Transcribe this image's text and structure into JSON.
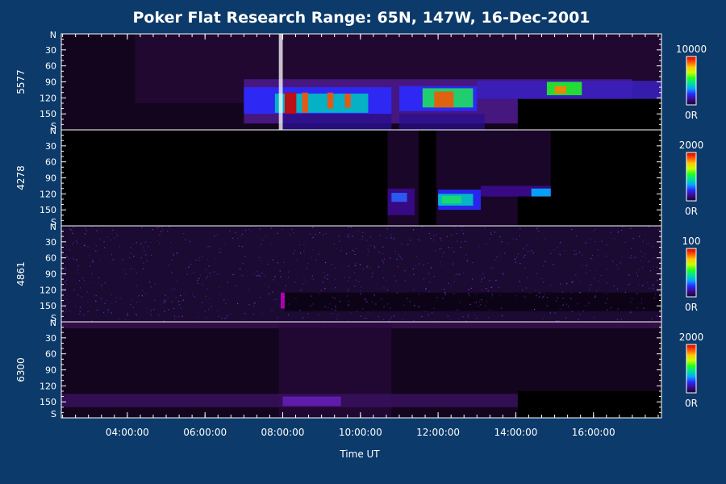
{
  "chart_data": {
    "type": "heatmap",
    "title": "Poker Flat Research Range: 65N, 147W, 16-Dec-2001",
    "xlabel": "Time UT",
    "x_range_hours": [
      2.3,
      17.75
    ],
    "x_ticks": [
      {
        "value": 4,
        "label": "04:00:00"
      },
      {
        "value": 6,
        "label": "06:00:00"
      },
      {
        "value": 8,
        "label": "08:00:00"
      },
      {
        "value": 10,
        "label": "10:00:00"
      },
      {
        "value": 12,
        "label": "12:00:00"
      },
      {
        "value": 14,
        "label": "14:00:00"
      },
      {
        "value": 16,
        "label": "16:00:00"
      }
    ],
    "y_range_deg": [
      0,
      180
    ],
    "y_ticks": [
      {
        "value": 0,
        "label": "N"
      },
      {
        "value": 30,
        "label": "30"
      },
      {
        "value": 60,
        "label": "60"
      },
      {
        "value": 90,
        "label": "90"
      },
      {
        "value": 120,
        "label": "120"
      },
      {
        "value": 150,
        "label": "150"
      },
      {
        "value": 180,
        "label": "S"
      }
    ],
    "colorbar_colors": [
      "#1a0030",
      "#3b0a8c",
      "#2a2aff",
      "#00a8ff",
      "#00e0a0",
      "#20ff20",
      "#c8ff00",
      "#ffc800",
      "#ff5000",
      "#c80000"
    ],
    "panels": [
      {
        "name": "5577",
        "cbar_max": "10000",
        "cbar_min": "0R",
        "features": [
          {
            "kind": "rect",
            "x0": 2.3,
            "x1": 17.75,
            "y0": 0,
            "y1": 180,
            "color": "#14051e",
            "opacity": 1
          },
          {
            "kind": "rect",
            "x0": 4.2,
            "x1": 17.75,
            "y0": 0,
            "y1": 130,
            "color": "#2a0a3e",
            "opacity": 0.6
          },
          {
            "kind": "rect",
            "x0": 7.0,
            "x1": 17.0,
            "y0": 85,
            "y1": 168,
            "color": "#4a1a8a",
            "opacity": 0.9
          },
          {
            "kind": "rect",
            "x0": 7.0,
            "x1": 10.8,
            "y0": 100,
            "y1": 150,
            "color": "#2a2aff",
            "opacity": 0.9
          },
          {
            "kind": "rect",
            "x0": 7.8,
            "x1": 10.2,
            "y0": 112,
            "y1": 148,
            "color": "#00c0c0",
            "opacity": 0.9
          },
          {
            "kind": "rect",
            "x0": 11.0,
            "x1": 13.0,
            "y0": 98,
            "y1": 145,
            "color": "#2a2aff",
            "opacity": 0.9
          },
          {
            "kind": "rect",
            "x0": 11.6,
            "x1": 12.9,
            "y0": 102,
            "y1": 138,
            "color": "#20e060",
            "opacity": 0.9
          },
          {
            "kind": "rect",
            "x0": 13.0,
            "x1": 17.75,
            "y0": 88,
            "y1": 122,
            "color": "#3a20c0",
            "opacity": 0.85
          },
          {
            "kind": "rect",
            "x0": 14.8,
            "x1": 15.7,
            "y0": 90,
            "y1": 115,
            "color": "#20ff20",
            "opacity": 0.85
          },
          {
            "kind": "rect",
            "x0": 8.05,
            "x1": 8.35,
            "y0": 110,
            "y1": 150,
            "color": "#d00000",
            "opacity": 0.9
          },
          {
            "kind": "rect",
            "x0": 8.5,
            "x1": 8.65,
            "y0": 110,
            "y1": 148,
            "color": "#ff5000",
            "opacity": 0.9
          },
          {
            "kind": "rect",
            "x0": 9.15,
            "x1": 9.3,
            "y0": 110,
            "y1": 140,
            "color": "#ff5000",
            "opacity": 0.9
          },
          {
            "kind": "rect",
            "x0": 9.6,
            "x1": 9.75,
            "y0": 112,
            "y1": 138,
            "color": "#ff5000",
            "opacity": 0.9
          },
          {
            "kind": "rect",
            "x0": 11.9,
            "x1": 12.4,
            "y0": 108,
            "y1": 138,
            "color": "#ff5000",
            "opacity": 0.85
          },
          {
            "kind": "rect",
            "x0": 15.0,
            "x1": 15.3,
            "y0": 98,
            "y1": 112,
            "color": "#ff8000",
            "opacity": 0.9
          },
          {
            "kind": "rect",
            "x0": 7.9,
            "x1": 8.0,
            "y0": 0,
            "y1": 180,
            "color": "#ffffff",
            "opacity": 0.75
          },
          {
            "kind": "rect",
            "x0": 8.0,
            "x1": 10.8,
            "y0": 150,
            "y1": 180,
            "color": "#2a1090",
            "opacity": 0.8
          },
          {
            "kind": "rect",
            "x0": 11.0,
            "x1": 13.2,
            "y0": 150,
            "y1": 180,
            "color": "#2a1090",
            "opacity": 0.7
          },
          {
            "kind": "rect",
            "x0": 14.05,
            "x1": 17.75,
            "y0": 122,
            "y1": 180,
            "color": "#000000",
            "opacity": 1
          }
        ]
      },
      {
        "name": "4278",
        "cbar_max": "2000",
        "cbar_min": "0R",
        "features": [
          {
            "kind": "rect",
            "x0": 2.3,
            "x1": 17.75,
            "y0": 0,
            "y1": 180,
            "color": "#000000",
            "opacity": 1
          },
          {
            "kind": "rect",
            "x0": 10.7,
            "x1": 14.9,
            "y0": 0,
            "y1": 180,
            "color": "#1a0628",
            "opacity": 1
          },
          {
            "kind": "rect",
            "x0": 10.7,
            "x1": 11.4,
            "y0": 110,
            "y1": 160,
            "color": "#3b0a8c",
            "opacity": 0.9
          },
          {
            "kind": "rect",
            "x0": 10.8,
            "x1": 11.2,
            "y0": 118,
            "y1": 135,
            "color": "#2a60ff",
            "opacity": 0.9
          },
          {
            "kind": "rect",
            "x0": 11.5,
            "x1": 11.95,
            "y0": 0,
            "y1": 180,
            "color": "#000000",
            "opacity": 1
          },
          {
            "kind": "rect",
            "x0": 12.0,
            "x1": 13.1,
            "y0": 112,
            "y1": 150,
            "color": "#2a2aff",
            "opacity": 0.9
          },
          {
            "kind": "rect",
            "x0": 12.0,
            "x1": 12.9,
            "y0": 120,
            "y1": 142,
            "color": "#00c8c0",
            "opacity": 0.9
          },
          {
            "kind": "rect",
            "x0": 12.1,
            "x1": 12.6,
            "y0": 124,
            "y1": 138,
            "color": "#20e060",
            "opacity": 0.8
          },
          {
            "kind": "rect",
            "x0": 13.1,
            "x1": 14.9,
            "y0": 105,
            "y1": 125,
            "color": "#3b0a8c",
            "opacity": 0.9
          },
          {
            "kind": "rect",
            "x0": 14.4,
            "x1": 14.9,
            "y0": 110,
            "y1": 125,
            "color": "#00b0ff",
            "opacity": 0.9
          },
          {
            "kind": "rect",
            "x0": 14.05,
            "x1": 14.9,
            "y0": 125,
            "y1": 180,
            "color": "#000000",
            "opacity": 1
          }
        ]
      },
      {
        "name": "4861",
        "cbar_max": "100",
        "cbar_min": "0R",
        "features": [
          {
            "kind": "rect",
            "x0": 2.3,
            "x1": 17.75,
            "y0": 0,
            "y1": 180,
            "color": "#0a0214",
            "opacity": 1
          },
          {
            "kind": "rect",
            "x0": 2.3,
            "x1": 17.75,
            "y0": 0,
            "y1": 180,
            "color": "#3b1a6a",
            "opacity": 0.35
          },
          {
            "kind": "rect",
            "x0": 7.95,
            "x1": 8.05,
            "y0": 125,
            "y1": 155,
            "color": "#c000c0",
            "opacity": 0.9
          },
          {
            "kind": "rect",
            "x0": 8.05,
            "x1": 17.75,
            "y0": 125,
            "y1": 160,
            "color": "#000000",
            "opacity": 0.55
          }
        ]
      },
      {
        "name": "6300",
        "cbar_max": "2000",
        "cbar_min": "0R",
        "features": [
          {
            "kind": "rect",
            "x0": 2.3,
            "x1": 17.75,
            "y0": 0,
            "y1": 180,
            "color": "#14051e",
            "opacity": 1
          },
          {
            "kind": "rect",
            "x0": 2.3,
            "x1": 17.75,
            "y0": 0,
            "y1": 12,
            "color": "#3a1050",
            "opacity": 0.8
          },
          {
            "kind": "rect",
            "x0": 7.9,
            "x1": 10.8,
            "y0": 0,
            "y1": 180,
            "color": "#2a0a40",
            "opacity": 0.6
          },
          {
            "kind": "rect",
            "x0": 2.3,
            "x1": 17.75,
            "y0": 135,
            "y1": 160,
            "color": "#3a1060",
            "opacity": 0.8
          },
          {
            "kind": "rect",
            "x0": 8.0,
            "x1": 9.5,
            "y0": 140,
            "y1": 158,
            "color": "#6a20c0",
            "opacity": 0.8
          },
          {
            "kind": "rect",
            "x0": 14.05,
            "x1": 17.75,
            "y0": 130,
            "y1": 180,
            "color": "#000000",
            "opacity": 1
          }
        ]
      }
    ]
  }
}
